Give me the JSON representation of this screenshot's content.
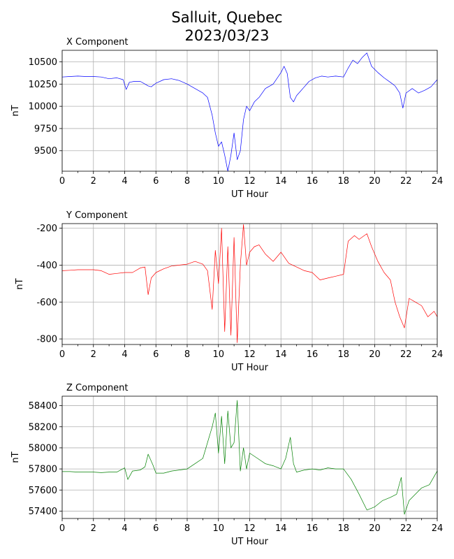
{
  "figure": {
    "title_line1": "Salluit, Quebec",
    "title_line2": "2023/03/23"
  },
  "chart_data": [
    {
      "type": "line",
      "title": "X Component",
      "xlabel": "UT Hour",
      "ylabel": "nT",
      "xlim": [
        0,
        24
      ],
      "ylim": [
        9270,
        10630
      ],
      "xticks": [
        0,
        2,
        4,
        6,
        8,
        10,
        12,
        14,
        16,
        18,
        20,
        22,
        24
      ],
      "yticks": [
        9500,
        9750,
        10000,
        10250,
        10500
      ],
      "grid": true,
      "color": "#0000ff",
      "x": [
        0,
        0.5,
        1,
        1.5,
        2,
        2.5,
        3,
        3.5,
        3.9,
        4.1,
        4.3,
        4.6,
        5,
        5.3,
        5.5,
        5.7,
        6,
        6.5,
        7,
        7.5,
        8,
        8.5,
        9,
        9.3,
        9.6,
        9.8,
        10,
        10.2,
        10.4,
        10.6,
        10.8,
        11,
        11.2,
        11.4,
        11.6,
        11.8,
        12,
        12.3,
        12.6,
        13,
        13.5,
        14,
        14.2,
        14.4,
        14.6,
        14.8,
        15,
        15.4,
        15.8,
        16.2,
        16.6,
        17,
        17.5,
        18,
        18.3,
        18.6,
        18.9,
        19.2,
        19.5,
        19.8,
        20.2,
        20.6,
        21,
        21.3,
        21.6,
        21.8,
        22,
        22.4,
        22.8,
        23.2,
        23.6,
        24
      ],
      "values": [
        10330,
        10335,
        10340,
        10335,
        10335,
        10330,
        10310,
        10320,
        10300,
        10190,
        10270,
        10280,
        10280,
        10250,
        10230,
        10220,
        10260,
        10300,
        10310,
        10290,
        10250,
        10200,
        10150,
        10100,
        9900,
        9700,
        9550,
        9600,
        9450,
        9270,
        9450,
        9700,
        9400,
        9500,
        9850,
        10000,
        9950,
        10050,
        10100,
        10200,
        10250,
        10380,
        10450,
        10370,
        10100,
        10050,
        10120,
        10200,
        10280,
        10320,
        10340,
        10330,
        10340,
        10330,
        10430,
        10520,
        10480,
        10550,
        10600,
        10450,
        10380,
        10320,
        10270,
        10230,
        10150,
        9980,
        10150,
        10200,
        10150,
        10180,
        10220,
        10300
      ]
    },
    {
      "type": "line",
      "title": "Y Component",
      "xlabel": "UT Hour",
      "ylabel": "nT",
      "xlim": [
        0,
        24
      ],
      "ylim": [
        -830,
        -175
      ],
      "xticks": [
        0,
        2,
        4,
        6,
        8,
        10,
        12,
        14,
        16,
        18,
        20,
        22,
        24
      ],
      "yticks": [
        -800,
        -600,
        -400,
        -200
      ],
      "grid": true,
      "color": "#ff0000",
      "x": [
        0,
        0.5,
        1,
        1.5,
        2,
        2.5,
        3,
        3.5,
        4,
        4.5,
        5,
        5.3,
        5.5,
        5.7,
        6,
        6.5,
        7,
        7.5,
        8,
        8.5,
        9,
        9.3,
        9.6,
        9.8,
        10,
        10.2,
        10.4,
        10.6,
        10.8,
        11,
        11.2,
        11.4,
        11.6,
        11.8,
        12,
        12.3,
        12.6,
        13,
        13.5,
        14,
        14.5,
        15,
        15.5,
        16,
        16.5,
        17,
        17.5,
        18,
        18.3,
        18.7,
        19,
        19.5,
        19.8,
        20.2,
        20.6,
        21,
        21.3,
        21.6,
        21.9,
        22.2,
        22.6,
        23,
        23.4,
        23.8,
        24
      ],
      "values": [
        -430,
        -428,
        -425,
        -425,
        -425,
        -430,
        -450,
        -445,
        -440,
        -440,
        -415,
        -410,
        -560,
        -470,
        -440,
        -420,
        -405,
        -400,
        -395,
        -380,
        -395,
        -430,
        -640,
        -320,
        -500,
        -200,
        -760,
        -300,
        -780,
        -250,
        -820,
        -400,
        -180,
        -400,
        -330,
        -300,
        -290,
        -340,
        -380,
        -330,
        -390,
        -410,
        -430,
        -440,
        -480,
        -470,
        -460,
        -450,
        -270,
        -240,
        -260,
        -230,
        -300,
        -380,
        -440,
        -480,
        -600,
        -680,
        -740,
        -580,
        -600,
        -620,
        -680,
        -650,
        -680
      ]
    },
    {
      "type": "line",
      "title": "Z Component",
      "xlabel": "UT Hour",
      "ylabel": "nT",
      "xlim": [
        0,
        24
      ],
      "ylim": [
        57330,
        58490
      ],
      "xticks": [
        0,
        2,
        4,
        6,
        8,
        10,
        12,
        14,
        16,
        18,
        20,
        22,
        24
      ],
      "yticks": [
        57400,
        57600,
        57800,
        58000,
        58200,
        58400
      ],
      "grid": true,
      "color": "#008000",
      "x": [
        0,
        0.5,
        1,
        1.5,
        2,
        2.5,
        3,
        3.5,
        4,
        4.2,
        4.5,
        5,
        5.3,
        5.5,
        5.8,
        6,
        6.5,
        7,
        7.5,
        8,
        8.5,
        9,
        9.3,
        9.6,
        9.8,
        10,
        10.2,
        10.4,
        10.6,
        10.8,
        11,
        11.2,
        11.4,
        11.6,
        11.8,
        12,
        12.5,
        13,
        13.5,
        14,
        14.3,
        14.6,
        14.8,
        15,
        15.5,
        16,
        16.5,
        17,
        17.5,
        18,
        18.5,
        19,
        19.5,
        20,
        20.5,
        21,
        21.4,
        21.7,
        21.9,
        22.2,
        22.6,
        23,
        23.5,
        24
      ],
      "values": [
        57775,
        57775,
        57770,
        57770,
        57770,
        57765,
        57770,
        57770,
        57810,
        57700,
        57780,
        57790,
        57820,
        57940,
        57840,
        57760,
        57760,
        57780,
        57790,
        57800,
        57850,
        57900,
        58050,
        58200,
        58330,
        57950,
        58300,
        57850,
        58350,
        58000,
        58050,
        58450,
        57780,
        58000,
        57800,
        57950,
        57900,
        57850,
        57830,
        57800,
        57900,
        58100,
        57850,
        57770,
        57790,
        57800,
        57790,
        57810,
        57800,
        57800,
        57700,
        57560,
        57410,
        57440,
        57500,
        57530,
        57560,
        57720,
        57370,
        57500,
        57560,
        57620,
        57650,
        57780
      ]
    }
  ]
}
